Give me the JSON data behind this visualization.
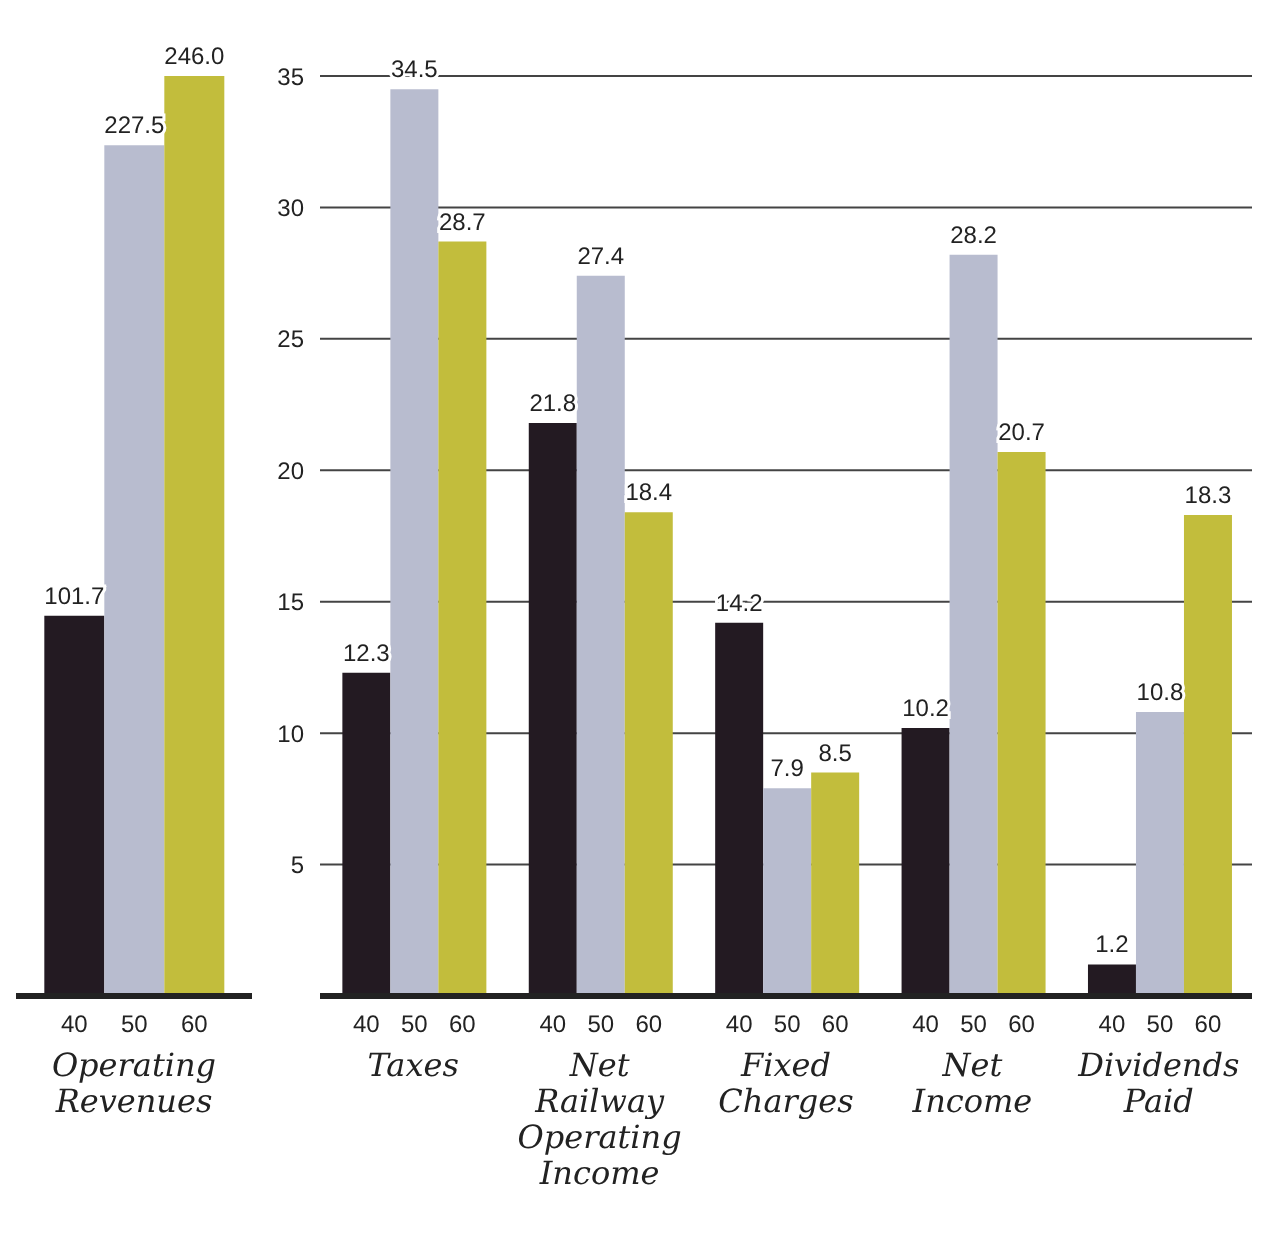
{
  "chart_data": [
    {
      "type": "bar",
      "categories": [
        "Operating Revenues"
      ],
      "data_labels": true,
      "tick_labels": "x",
      "legend": false,
      "series": [
        {
          "name": "40",
          "color": "#231a22",
          "values": [
            101.7
          ],
          "value_labels": [
            "101.7"
          ]
        },
        {
          "name": "50",
          "color": "#b8bccf",
          "values": [
            227.5
          ],
          "value_labels": [
            "227.5"
          ]
        },
        {
          "name": "60",
          "color": "#c2bd3c",
          "values": [
            246.0
          ],
          "value_labels": [
            "246.0"
          ]
        }
      ]
    },
    {
      "type": "bar",
      "categories": [
        "Taxes",
        "Net Railway Operating Income",
        "Fixed Charges",
        "Net Income",
        "Dividends Paid"
      ],
      "ylim": [
        0,
        35
      ],
      "yticks": [
        5,
        10,
        15,
        20,
        25,
        30,
        35
      ],
      "grid": "y",
      "data_labels": true,
      "legend": false,
      "series": [
        {
          "name": "40",
          "color": "#231a22",
          "values": [
            12.3,
            21.8,
            14.2,
            10.2,
            1.2
          ]
        },
        {
          "name": "50",
          "color": "#b8bccf",
          "values": [
            34.5,
            27.4,
            7.9,
            28.2,
            10.8
          ]
        },
        {
          "name": "60",
          "color": "#c2bd3c",
          "values": [
            28.7,
            18.4,
            8.5,
            20.7,
            18.3
          ]
        }
      ]
    }
  ]
}
